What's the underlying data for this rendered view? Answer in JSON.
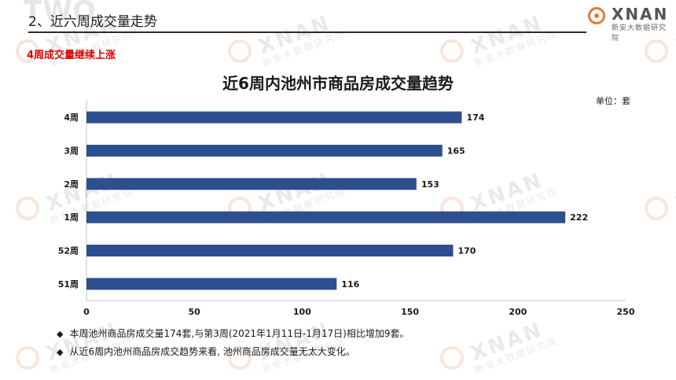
{
  "header": {
    "section_title": "2、近六周成交量走势",
    "background_mark": "TWO",
    "logo_text": "XNAN",
    "logo_subtext": "新安大数据研究院"
  },
  "subtitle": "4周成交量继续上涨",
  "unit_label": "单位：套",
  "watermark": {
    "text": "XNAN",
    "subtext": "新安大数据研究院"
  },
  "chart_data": {
    "type": "bar",
    "orientation": "horizontal",
    "title": "近6周内池州市商品房成交量趋势",
    "categories": [
      "4周",
      "3周",
      "2周",
      "1周",
      "52周",
      "51周"
    ],
    "values": [
      174,
      165,
      153,
      222,
      170,
      116
    ],
    "x_ticks": [
      "0",
      "50",
      "100",
      "150",
      "200",
      "250"
    ],
    "xlim": [
      0,
      250
    ],
    "grid": false,
    "legend": "none",
    "bar_color": "#2e4f8f",
    "xlabel": "",
    "ylabel": ""
  },
  "notes": [
    {
      "bullet": "◆",
      "text": "本周池州商品房成交量174套,与第3周(2021年1月11日-1月17日)相比增加9套。"
    },
    {
      "bullet": "◆",
      "text": "从近6周内池州商品房成交趋势来看, 池州商品房成交量无太大变化。"
    }
  ],
  "colors": {
    "accent_red": "#e00000",
    "logo_orange": "#e07a3a",
    "bar_blue": "#2e4f8f"
  }
}
